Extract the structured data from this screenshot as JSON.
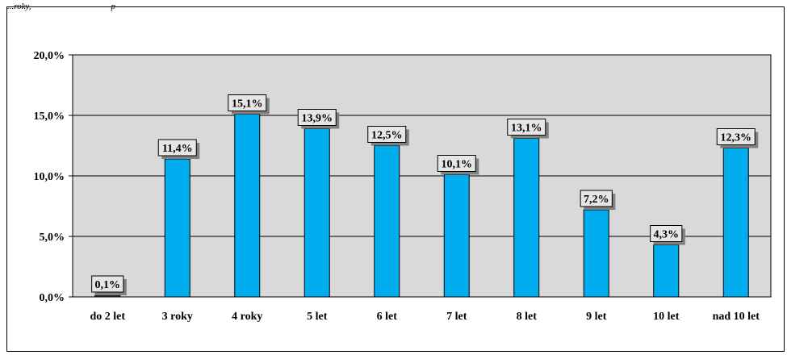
{
  "header_fragment": "...roky,                                    p",
  "chart_data": {
    "type": "bar",
    "categories": [
      "do 2 let",
      "3 roky",
      "4 roky",
      "5 let",
      "6 let",
      "7 let",
      "8 let",
      "9 let",
      "10 let",
      "nad 10 let"
    ],
    "values": [
      0.1,
      11.4,
      15.1,
      13.9,
      12.5,
      10.1,
      13.1,
      7.2,
      4.3,
      12.3
    ],
    "data_labels": [
      "0,1%",
      "11,4%",
      "15,1%",
      "13,9%",
      "12,5%",
      "10,1%",
      "13,1%",
      "7,2%",
      "4,3%",
      "12,3%"
    ],
    "ylim": [
      0,
      20
    ],
    "yticks": [
      "0,0%",
      "5,0%",
      "10,0%",
      "15,0%",
      "20,0%"
    ],
    "title": "",
    "xlabel": "",
    "ylabel": "",
    "grid": true,
    "legend": "none",
    "colors": {
      "bar": "#00AEEF",
      "first_bar": "#404040",
      "plot_background": "#D9D9D9",
      "label_box": "#E6E6E6",
      "label_shadow": "#808080"
    }
  }
}
